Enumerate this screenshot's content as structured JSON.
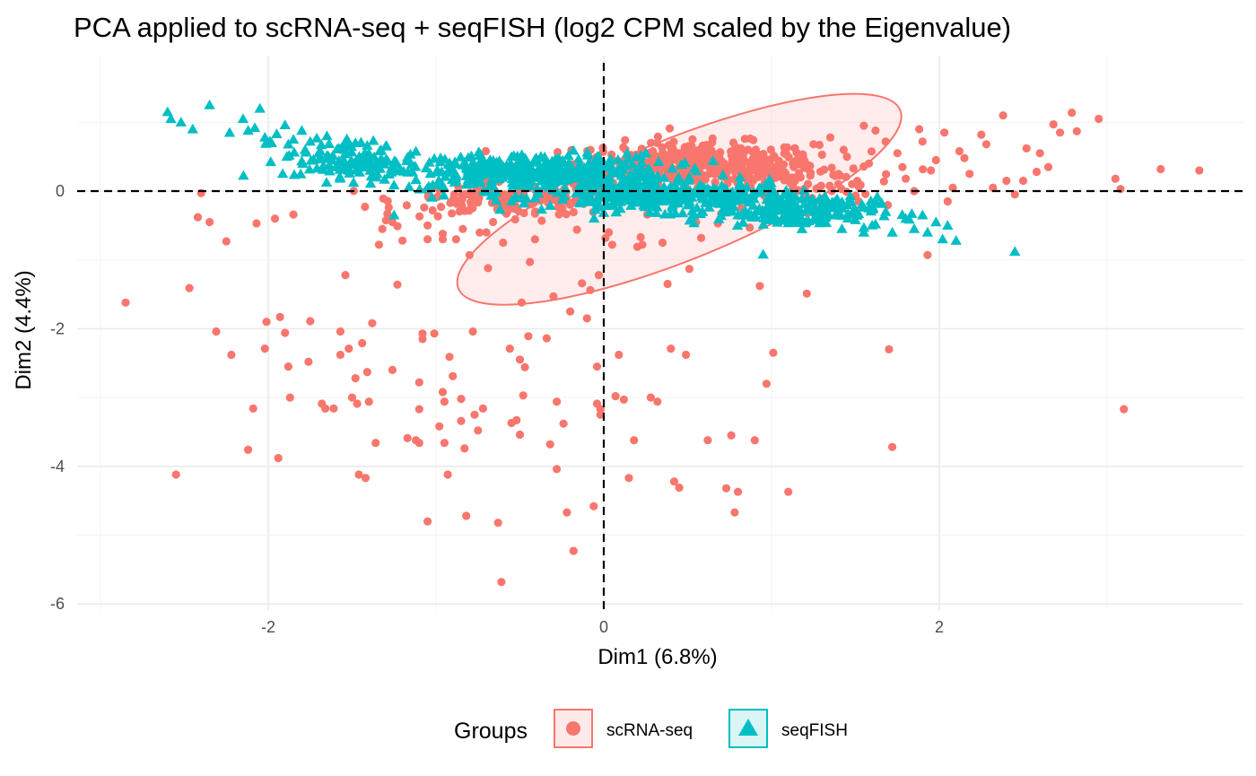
{
  "chart_data": {
    "type": "scatter",
    "title": "PCA applied to scRNA-seq + seqFISH (log2 CPM scaled by the Eigenvalue)",
    "xlabel": "Dim1 (6.8%)",
    "ylabel": "Dim2 (4.4%)",
    "xlim": [
      -3.2,
      3.75
    ],
    "ylim": [
      -6.0,
      2.0
    ],
    "x_ticks": [
      -2,
      0,
      2
    ],
    "x_tick_labels": [
      "-2",
      "0",
      "2"
    ],
    "y_ticks": [
      -6,
      -4,
      -2,
      0
    ],
    "y_tick_labels": [
      "-6",
      "-4",
      "-2",
      "0"
    ],
    "grid": true,
    "reference_lines": {
      "x": 0,
      "y": 0,
      "style": "dashed"
    },
    "legend": {
      "title": "Groups",
      "position": "bottom",
      "entries": [
        {
          "label": "scRNA-seq",
          "shape": "circle",
          "color": "#F8766D"
        },
        {
          "label": "seqFISH",
          "shape": "triangle",
          "color": "#00BFC4"
        }
      ]
    },
    "ellipse": {
      "series": "scRNA-seq",
      "center": [
        0.45,
        -0.12
      ],
      "semi_axes": [
        1.42,
        0.88
      ],
      "rotation_deg": 22,
      "fill": "#F8766D",
      "fill_opacity": 0.13,
      "stroke": "#F8766D"
    },
    "series": [
      {
        "name": "scRNA-seq",
        "color": "#F8766D",
        "shape": "circle",
        "points": [
          [
            -2.85,
            -1.62
          ],
          [
            -2.55,
            -4.12
          ],
          [
            -2.47,
            -1.41
          ],
          [
            -2.42,
            -0.38
          ],
          [
            -2.4,
            -0.03
          ],
          [
            -2.35,
            -0.45
          ],
          [
            -2.31,
            -2.04
          ],
          [
            -2.25,
            -0.73
          ],
          [
            -2.22,
            -2.38
          ],
          [
            -2.12,
            -3.76
          ],
          [
            -2.09,
            -3.16
          ],
          [
            -2.07,
            -0.47
          ],
          [
            -2.02,
            -2.29
          ],
          [
            -2.01,
            -1.9
          ],
          [
            -1.96,
            -0.4
          ],
          [
            -1.94,
            -3.88
          ],
          [
            -1.93,
            -1.83
          ],
          [
            -1.9,
            -2.06
          ],
          [
            -1.88,
            -2.55
          ],
          [
            -1.87,
            -3.0
          ],
          [
            -1.85,
            -0.34
          ],
          [
            -1.76,
            -2.48
          ],
          [
            -1.75,
            -1.89
          ],
          [
            -1.68,
            -3.09
          ],
          [
            -1.66,
            -3.16
          ],
          [
            -1.61,
            -3.16
          ],
          [
            -1.57,
            -2.04
          ],
          [
            -1.57,
            -2.38
          ],
          [
            -1.54,
            -1.22
          ],
          [
            -1.52,
            -2.29
          ],
          [
            -1.5,
            -3.0
          ],
          [
            -1.48,
            -2.72
          ],
          [
            -1.47,
            -3.09
          ],
          [
            -1.46,
            -4.12
          ],
          [
            -1.44,
            -2.21
          ],
          [
            -1.42,
            -4.17
          ],
          [
            -1.41,
            -2.63
          ],
          [
            -1.4,
            -3.06
          ],
          [
            -1.38,
            -1.92
          ],
          [
            -1.36,
            -3.66
          ],
          [
            -1.34,
            -0.78
          ],
          [
            -1.32,
            -0.55
          ],
          [
            -1.29,
            -0.33
          ],
          [
            -1.26,
            -0.45
          ],
          [
            -1.26,
            -2.6
          ],
          [
            -1.23,
            -1.36
          ],
          [
            -1.23,
            -0.51
          ],
          [
            -1.2,
            -0.72
          ],
          [
            -1.17,
            -3.59
          ],
          [
            -1.12,
            -3.62
          ],
          [
            -1.1,
            -3.66
          ],
          [
            -1.1,
            -2.78
          ],
          [
            -1.08,
            -2.15
          ],
          [
            -1.1,
            -3.17
          ],
          [
            -1.08,
            -2.07
          ],
          [
            -1.05,
            -0.5
          ],
          [
            -1.05,
            -0.7
          ],
          [
            -1.05,
            -4.8
          ],
          [
            -1.01,
            -2.07
          ],
          [
            -0.97,
            -0.23
          ],
          [
            -0.96,
            -0.62
          ],
          [
            -0.98,
            -3.42
          ],
          [
            -0.96,
            -2.92
          ],
          [
            -0.95,
            -3.66
          ],
          [
            -0.96,
            -0.7
          ],
          [
            -0.93,
            -4.12
          ],
          [
            -0.95,
            -3.06
          ],
          [
            -0.92,
            -2.41
          ],
          [
            -0.9,
            -2.69
          ],
          [
            -0.88,
            -0.7
          ],
          [
            -0.85,
            -3.02
          ],
          [
            -0.85,
            -3.34
          ],
          [
            -0.84,
            -0.55
          ],
          [
            -0.83,
            -3.74
          ],
          [
            -0.82,
            -4.72
          ],
          [
            -0.8,
            -0.93
          ],
          [
            -0.78,
            -2.04
          ],
          [
            -0.77,
            -3.25
          ],
          [
            -0.75,
            -3.48
          ],
          [
            -0.72,
            -3.16
          ],
          [
            -0.7,
            -0.6
          ],
          [
            -0.69,
            -1.12
          ],
          [
            -0.66,
            -0.45
          ],
          [
            -0.63,
            -4.82
          ],
          [
            -0.61,
            -5.68
          ],
          [
            -0.6,
            -0.75
          ],
          [
            -0.58,
            -0.33
          ],
          [
            -0.56,
            -2.29
          ],
          [
            -0.55,
            -3.37
          ],
          [
            -0.52,
            -3.33
          ],
          [
            -0.5,
            -2.45
          ],
          [
            -0.5,
            -3.54
          ],
          [
            -0.49,
            -1.62
          ],
          [
            -0.48,
            -2.97
          ],
          [
            -0.47,
            -2.56
          ],
          [
            -0.45,
            -2.11
          ],
          [
            -0.44,
            -1.03
          ],
          [
            -0.41,
            -0.7
          ],
          [
            -0.37,
            -0.43
          ],
          [
            -0.34,
            -2.14
          ],
          [
            -0.32,
            -3.68
          ],
          [
            -0.3,
            -1.53
          ],
          [
            -0.28,
            -3.06
          ],
          [
            -0.28,
            -4.04
          ],
          [
            -0.24,
            -3.38
          ],
          [
            -0.22,
            -4.67
          ],
          [
            -0.2,
            -1.75
          ],
          [
            -0.18,
            -5.23
          ],
          [
            -0.16,
            -0.56
          ],
          [
            -0.13,
            -1.34
          ],
          [
            -0.1,
            -1.85
          ],
          [
            -0.08,
            -1.44
          ],
          [
            -0.06,
            -4.58
          ],
          [
            -0.04,
            -2.55
          ],
          [
            -0.04,
            -3.09
          ],
          [
            -0.03,
            -1.22
          ],
          [
            -0.02,
            -3.17
          ],
          [
            -0.02,
            -3.25
          ],
          [
            0.01,
            -0.68
          ],
          [
            0.03,
            -0.6
          ],
          [
            0.05,
            -0.78
          ],
          [
            0.07,
            -2.98
          ],
          [
            0.09,
            -2.38
          ],
          [
            0.12,
            -3.03
          ],
          [
            0.15,
            -4.17
          ],
          [
            0.18,
            -3.62
          ],
          [
            0.2,
            -0.81
          ],
          [
            0.22,
            -0.67
          ],
          [
            0.23,
            -0.78
          ],
          [
            0.26,
            -0.34
          ],
          [
            0.28,
            -3.0
          ],
          [
            0.32,
            -3.06
          ],
          [
            0.35,
            -0.75
          ],
          [
            0.38,
            -1.35
          ],
          [
            0.4,
            -2.29
          ],
          [
            0.42,
            -4.22
          ],
          [
            0.45,
            -4.31
          ],
          [
            0.49,
            -2.38
          ],
          [
            0.51,
            -1.13
          ],
          [
            0.55,
            -0.45
          ],
          [
            0.58,
            -0.68
          ],
          [
            0.62,
            -3.62
          ],
          [
            0.68,
            -0.47
          ],
          [
            0.7,
            -0.33
          ],
          [
            0.73,
            -4.32
          ],
          [
            0.76,
            -3.55
          ],
          [
            0.78,
            -4.67
          ],
          [
            0.8,
            -4.37
          ],
          [
            0.82,
            -0.25
          ],
          [
            0.87,
            -0.53
          ],
          [
            0.9,
            -3.62
          ],
          [
            0.93,
            -1.38
          ],
          [
            0.97,
            -2.8
          ],
          [
            1.01,
            -2.35
          ],
          [
            1.06,
            -0.2
          ],
          [
            1.1,
            -4.37
          ],
          [
            1.15,
            -0.43
          ],
          [
            1.21,
            -1.49
          ],
          [
            1.25,
            -0.22
          ],
          [
            1.32,
            -0.38
          ],
          [
            1.38,
            0.22
          ],
          [
            1.43,
            0.6
          ],
          [
            1.48,
            0.1
          ],
          [
            1.52,
            -0.15
          ],
          [
            1.58,
            0.4
          ],
          [
            1.62,
            0.88
          ],
          [
            1.67,
            0.14
          ],
          [
            1.7,
            -2.3
          ],
          [
            1.72,
            -3.72
          ],
          [
            1.75,
            0.55
          ],
          [
            1.8,
            0.18
          ],
          [
            1.85,
            0.0
          ],
          [
            1.9,
            0.72
          ],
          [
            1.93,
            -0.93
          ],
          [
            1.98,
            0.45
          ],
          [
            2.03,
            0.85
          ],
          [
            2.08,
            0.05
          ],
          [
            2.12,
            0.58
          ],
          [
            2.18,
            0.25
          ],
          [
            2.25,
            0.82
          ],
          [
            2.32,
            0.05
          ],
          [
            2.38,
            1.1
          ],
          [
            2.45,
            -0.05
          ],
          [
            2.52,
            0.62
          ],
          [
            2.58,
            0.28
          ],
          [
            2.65,
            0.35
          ],
          [
            2.72,
            0.85
          ],
          [
            2.79,
            1.14
          ],
          [
            2.82,
            0.87
          ],
          [
            2.95,
            1.05
          ],
          [
            3.05,
            0.18
          ],
          [
            3.08,
            0.03
          ],
          [
            3.1,
            -3.17
          ],
          [
            3.32,
            0.32
          ],
          [
            3.55,
            0.3
          ],
          [
            2.68,
            0.97
          ],
          [
            2.5,
            0.15
          ],
          [
            2.15,
            0.48
          ],
          [
            1.95,
            0.3
          ],
          [
            1.68,
            0.72
          ],
          [
            1.55,
            0.95
          ],
          [
            1.45,
            0.5
          ],
          [
            1.35,
            0.78
          ],
          [
            2.4,
            0.15
          ],
          [
            2.05,
            -0.15
          ],
          [
            1.88,
            0.9
          ],
          [
            2.28,
            0.68
          ],
          [
            1.78,
            0.35
          ],
          [
            2.6,
            0.55
          ],
          [
            1.25,
            0.68
          ]
        ],
        "dense_clusters": [
          {
            "center": [
              0.55,
              0.4
            ],
            "spread": [
              0.6,
              0.26
            ],
            "count": 380
          },
          {
            "center": [
              -0.55,
              -0.12
            ],
            "spread": [
              0.55,
              0.2
            ],
            "count": 150
          },
          {
            "center": [
              1.05,
              0.15
            ],
            "spread": [
              0.45,
              0.35
            ],
            "count": 110
          }
        ]
      },
      {
        "name": "seqFISH",
        "color": "#00BFC4",
        "shape": "triangle",
        "points": [
          [
            -2.6,
            1.15
          ],
          [
            -2.58,
            1.05
          ],
          [
            -2.52,
            1.0
          ],
          [
            -2.45,
            0.9
          ],
          [
            -2.35,
            1.25
          ],
          [
            -2.23,
            0.85
          ],
          [
            -2.15,
            1.05
          ],
          [
            -2.12,
            0.88
          ],
          [
            -2.08,
            0.92
          ],
          [
            -2.05,
            1.2
          ],
          [
            -2.02,
            0.78
          ],
          [
            -1.98,
            0.7
          ],
          [
            -1.95,
            0.83
          ],
          [
            -1.9,
            0.96
          ],
          [
            -1.88,
            0.68
          ],
          [
            -1.85,
            0.75
          ],
          [
            -1.8,
            0.88
          ],
          [
            -1.78,
            0.6
          ],
          [
            -1.75,
            0.72
          ],
          [
            -1.7,
            0.55
          ],
          [
            -1.65,
            0.8
          ],
          [
            -1.62,
            0.45
          ],
          [
            -1.58,
            0.62
          ],
          [
            -1.52,
            0.3
          ],
          [
            -1.48,
            0.7
          ],
          [
            -1.45,
            0.4
          ],
          [
            -1.4,
            0.55
          ],
          [
            -1.35,
            0.25
          ],
          [
            -1.3,
            0.65
          ],
          [
            -1.25,
            -0.35
          ],
          [
            1.8,
            -0.4
          ],
          [
            1.85,
            -0.55
          ],
          [
            1.9,
            -0.35
          ],
          [
            1.93,
            -0.6
          ],
          [
            1.98,
            -0.45
          ],
          [
            2.02,
            -0.7
          ],
          [
            2.05,
            -0.5
          ],
          [
            2.1,
            -0.72
          ],
          [
            2.45,
            -0.88
          ],
          [
            1.72,
            -0.6
          ],
          [
            1.68,
            -0.3
          ],
          [
            1.62,
            -0.48
          ],
          [
            1.58,
            -0.25
          ],
          [
            1.55,
            -0.6
          ],
          [
            0.95,
            -0.92
          ],
          [
            1.5,
            -0.42
          ],
          [
            1.45,
            -0.2
          ],
          [
            1.42,
            -0.55
          ],
          [
            1.38,
            -0.35
          ],
          [
            1.33,
            -0.15
          ]
        ],
        "dense_clusters": [
          {
            "center": [
              -0.45,
              0.28
            ],
            "spread": [
              0.7,
              0.22
            ],
            "count": 420
          },
          {
            "center": [
              0.4,
              -0.08
            ],
            "spread": [
              0.6,
              0.18
            ],
            "count": 340
          },
          {
            "center": [
              1.15,
              -0.3
            ],
            "spread": [
              0.4,
              0.18
            ],
            "count": 160
          },
          {
            "center": [
              -1.55,
              0.45
            ],
            "spread": [
              0.3,
              0.25
            ],
            "count": 90
          }
        ]
      }
    ]
  }
}
